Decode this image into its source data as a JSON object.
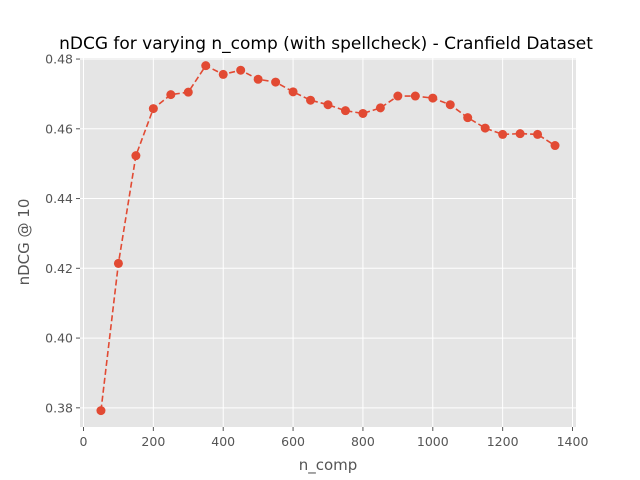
{
  "chart_data": {
    "type": "line",
    "title": "nDCG for varying n_comp (with spellcheck) - Cranfield Dataset",
    "xlabel": "n_comp",
    "ylabel": "nDCG @ 10",
    "xlim": [
      -10,
      1410
    ],
    "ylim": [
      0.3745,
      0.4803
    ],
    "xticks": [
      0,
      200,
      400,
      600,
      800,
      1000,
      1200,
      1400
    ],
    "yticks": [
      0.38,
      0.4,
      0.42,
      0.44,
      0.46,
      0.48
    ],
    "ytick_labels": [
      "0.38",
      "0.40",
      "0.42",
      "0.44",
      "0.46",
      "0.48"
    ],
    "grid": true,
    "series": [
      {
        "line_style": "dashed",
        "marker": "circle",
        "color": "#e24a33",
        "x": [
          50,
          100,
          150,
          200,
          250,
          300,
          350,
          400,
          450,
          500,
          550,
          600,
          650,
          700,
          750,
          800,
          850,
          900,
          950,
          1000,
          1050,
          1100,
          1150,
          1200,
          1250,
          1300,
          1350
        ],
        "y": [
          0.3792,
          0.4214,
          0.4523,
          0.4658,
          0.4698,
          0.4705,
          0.4781,
          0.4756,
          0.4768,
          0.4742,
          0.4734,
          0.4706,
          0.4682,
          0.4669,
          0.4652,
          0.4644,
          0.466,
          0.4694,
          0.4694,
          0.4688,
          0.4669,
          0.4632,
          0.4602,
          0.4584,
          0.4586,
          0.4584,
          0.4552
        ]
      }
    ]
  },
  "colors": {
    "plot_background": "#e5e5e5",
    "grid": "#ffffff",
    "series": "#e24a33",
    "text": "#555555"
  }
}
